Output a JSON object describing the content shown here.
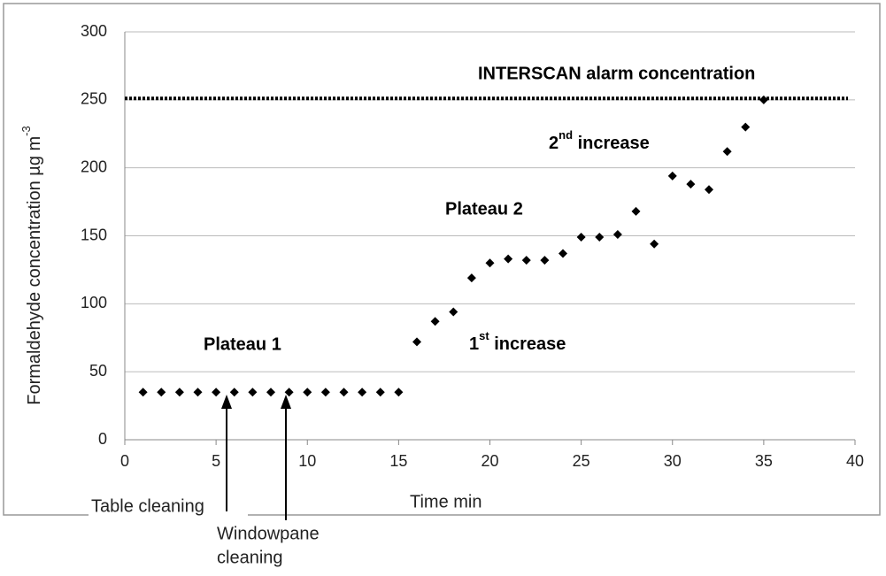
{
  "chart_data": {
    "type": "scatter",
    "xlabel": "Time min",
    "ylabel": [
      "Formaldehyde concentration µg m",
      "-3"
    ],
    "x": [
      1,
      2,
      3,
      4,
      5,
      6,
      7,
      8,
      9,
      10,
      11,
      12,
      13,
      14,
      15,
      16,
      17,
      18,
      19,
      20,
      21,
      22,
      23,
      24,
      25,
      26,
      27,
      28,
      29,
      30,
      31,
      32,
      33,
      34,
      35
    ],
    "values": [
      35,
      35,
      35,
      35,
      35,
      35,
      35,
      35,
      35,
      35,
      35,
      35,
      35,
      35,
      35,
      72,
      87,
      94,
      119,
      130,
      133,
      132,
      132,
      137,
      149,
      149,
      151,
      168,
      144,
      194,
      188,
      184,
      212,
      230,
      250
    ],
    "color": "#000000",
    "xlim": [
      0,
      40
    ],
    "xticks": [
      0,
      5,
      10,
      15,
      20,
      25,
      30,
      35,
      40
    ],
    "ylim": [
      0,
      300
    ],
    "yticks": [
      0,
      50,
      100,
      150,
      200,
      250,
      300
    ],
    "grid": true,
    "alarm_level": 251,
    "annotations": {
      "alarm": "INTERSCAN alarm concentration",
      "second_increase": [
        "2",
        "nd",
        " increase"
      ],
      "plateau_2": "Plateau 2",
      "plateau_1": "Plateau 1",
      "first_increase": [
        "1",
        "st",
        " increase"
      ],
      "table_cleaning": "Table cleaning",
      "windowpane_cleaning": [
        "Windowpane",
        "cleaning"
      ]
    }
  }
}
